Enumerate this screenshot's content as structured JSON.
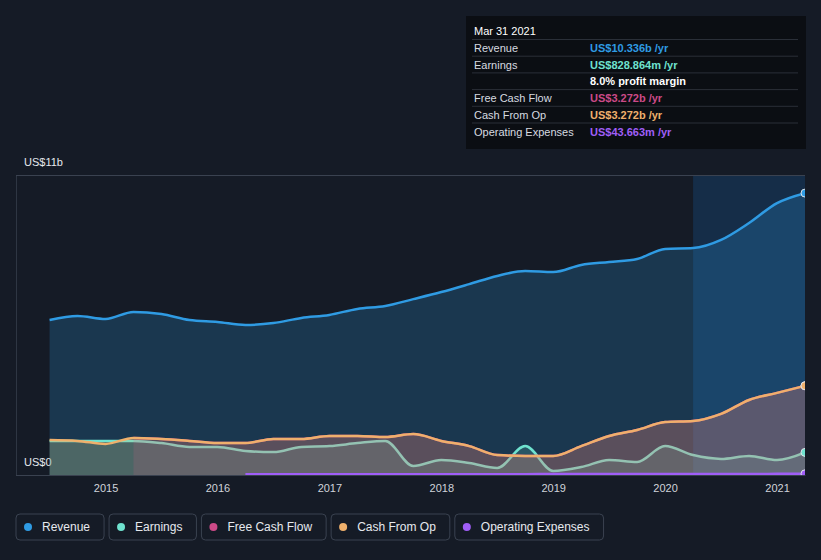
{
  "chart_data": {
    "type": "area",
    "x": [
      2014.5,
      2014.75,
      2015,
      2015.25,
      2015.5,
      2015.75,
      2016,
      2016.25,
      2016.5,
      2016.75,
      2017,
      2017.25,
      2017.5,
      2017.75,
      2018,
      2018.25,
      2018.5,
      2018.75,
      2019,
      2019.25,
      2019.5,
      2019.75,
      2020,
      2020.25,
      2020.5,
      2020.75,
      2021,
      2021.25
    ],
    "xlim": [
      2014.2,
      2021.25
    ],
    "xticks": [
      2015,
      2016,
      2017,
      2018,
      2019,
      2020,
      2021
    ],
    "ylim": [
      0,
      11
    ],
    "yticks": [
      {
        "value": 0,
        "label": "US$0"
      },
      {
        "value": 11,
        "label": "US$11b"
      }
    ],
    "grid": true,
    "legend": "bottom",
    "series": [
      {
        "name": "Revenue",
        "color": "#2f9be3",
        "values": [
          5.68,
          5.83,
          5.72,
          5.98,
          5.9,
          5.68,
          5.61,
          5.5,
          5.57,
          5.76,
          5.87,
          6.09,
          6.2,
          6.45,
          6.71,
          7.0,
          7.3,
          7.48,
          7.44,
          7.7,
          7.81,
          7.92,
          8.29,
          8.32,
          8.62,
          9.24,
          9.97,
          10.336
        ]
      },
      {
        "name": "Earnings",
        "color": "#6fe2cf",
        "values": [
          1.25,
          1.25,
          1.25,
          1.25,
          1.17,
          1.03,
          1.03,
          0.88,
          0.84,
          1.03,
          1.06,
          1.17,
          1.25,
          0.33,
          0.55,
          0.44,
          0.26,
          1.06,
          0.15,
          0.29,
          0.55,
          0.48,
          1.06,
          0.73,
          0.59,
          0.7,
          0.55,
          0.829
        ]
      },
      {
        "name": "Free Cash Flow",
        "color": "#cc4a88",
        "values": [
          null,
          null,
          null,
          1.36,
          1.32,
          1.25,
          1.17,
          1.17,
          1.32,
          1.32,
          1.43,
          1.43,
          1.39,
          1.5,
          1.25,
          1.06,
          0.73,
          0.7,
          0.7,
          1.06,
          1.43,
          1.65,
          1.94,
          1.98,
          2.24,
          2.75,
          3.01,
          3.272
        ]
      },
      {
        "name": "Cash From Op",
        "color": "#efb06c",
        "values": [
          1.28,
          1.25,
          1.14,
          1.36,
          1.32,
          1.25,
          1.17,
          1.17,
          1.32,
          1.32,
          1.43,
          1.43,
          1.39,
          1.5,
          1.25,
          1.06,
          0.73,
          0.7,
          0.7,
          1.06,
          1.43,
          1.65,
          1.94,
          1.98,
          2.24,
          2.75,
          3.01,
          3.272
        ]
      },
      {
        "name": "Operating Expenses",
        "color": "#a05ef7",
        "values": [
          null,
          null,
          null,
          null,
          null,
          null,
          null,
          0.03,
          0.03,
          0.03,
          0.03,
          0.03,
          0.03,
          0.03,
          0.03,
          0.03,
          0.03,
          0.03,
          0.035,
          0.035,
          0.035,
          0.035,
          0.04,
          0.04,
          0.04,
          0.04,
          0.042,
          0.044
        ]
      }
    ],
    "tooltip": {
      "date": "Mar 31 2021",
      "rows": [
        {
          "label": "Revenue",
          "value": "US$10.336b /yr"
        },
        {
          "label": "Earnings",
          "value": "US$828.864m /yr"
        },
        {
          "value": "8.0% profit margin"
        },
        {
          "label": "Free Cash Flow",
          "value": "US$3.272b /yr"
        },
        {
          "label": "Cash From Op",
          "value": "US$3.272b /yr"
        },
        {
          "label": "Operating Expenses",
          "value": "US$43.663m /yr"
        }
      ]
    }
  }
}
